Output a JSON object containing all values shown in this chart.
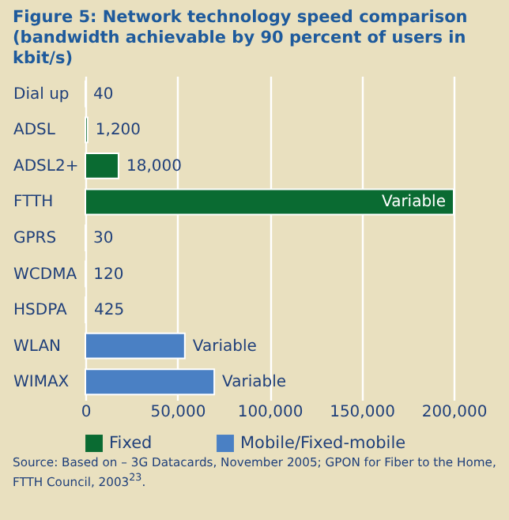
{
  "chart_data": {
    "type": "bar",
    "orientation": "horizontal",
    "title": "Figure 5: Network technology speed comparison (bandwidth achievable by 90 percent of users in kbit/s)",
    "categories": [
      "Dial up",
      "ADSL",
      "ADSL2+",
      "FTTH",
      "GPRS",
      "WCDMA",
      "HSDPA",
      "WLAN",
      "WIMAX"
    ],
    "series": [
      {
        "name": "Fixed",
        "color": "#0a6b32",
        "values": [
          40,
          1200,
          18000,
          200000,
          null,
          null,
          null,
          null,
          null
        ],
        "value_labels": [
          "40",
          "1,200",
          "18,000",
          "Variable",
          null,
          null,
          null,
          null,
          null
        ]
      },
      {
        "name": "Mobile/Fixed-mobile",
        "color": "#4a80c4",
        "values": [
          null,
          null,
          null,
          null,
          30,
          120,
          425,
          54000,
          70000
        ],
        "value_labels": [
          null,
          null,
          null,
          null,
          "30",
          "120",
          "425",
          "Variable",
          "Variable"
        ]
      }
    ],
    "xlim": [
      0,
      200000
    ],
    "xticks": [
      0,
      {
        "value": 50000,
        "label": "50,000"
      },
      {
        "value": 100000,
        "label": "100,000"
      },
      {
        "value": 150000,
        "label": "150,000"
      },
      {
        "value": 200000,
        "label": "200,000"
      }
    ],
    "grid": "x",
    "legend": "bottom",
    "annotations": [
      "Source: Based on – 3G Datacards, November 2005; GPON for Fiber to the Home, FTTH Council, 2003$^{23}$."
    ]
  }
}
